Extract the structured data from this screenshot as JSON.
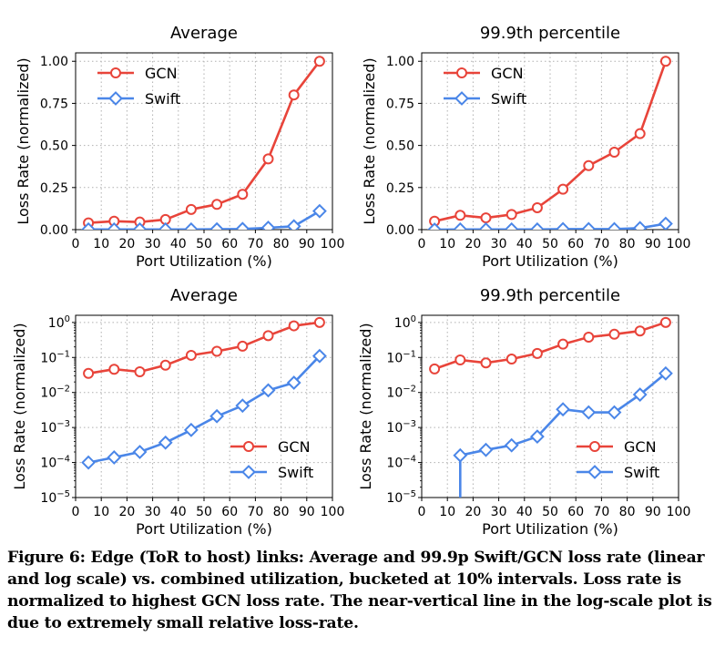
{
  "caption": {
    "label": "Figure 6:",
    "text": "Edge (ToR to host) links: Average and 99.9p Swift/GCN loss rate (linear and log scale) vs. combined utilization, bucketed at 10% intervals. Loss rate is normalized to highest GCN loss rate. The near-vertical line in the log-scale plot is due to extremely small relative loss-rate."
  },
  "colors": {
    "gcn": "#e8443a",
    "swift": "#4a86e8",
    "grid": "#b0b0b0"
  },
  "chart_data": [
    {
      "type": "line",
      "title": "Average",
      "xlabel": "Port Utilization (%)",
      "ylabel": "Loss Rate (normalized)",
      "yscale": "linear",
      "xlim": [
        0,
        100
      ],
      "ylim": [
        0,
        1.05
      ],
      "xticks": [
        0,
        10,
        20,
        30,
        40,
        50,
        60,
        70,
        80,
        90,
        100
      ],
      "yticks": [
        0,
        0.25,
        0.5,
        0.75,
        1.0
      ],
      "ytick_labels": [
        "0.00",
        "0.25",
        "0.50",
        "0.75",
        "1.00"
      ],
      "grid": true,
      "legend_position": "upper-left",
      "x": [
        5,
        15,
        25,
        35,
        45,
        55,
        65,
        75,
        85,
        95
      ],
      "series": [
        {
          "name": "GCN",
          "marker": "circle",
          "values": [
            0.04,
            0.05,
            0.045,
            0.06,
            0.12,
            0.15,
            0.21,
            0.42,
            0.8,
            1.0
          ]
        },
        {
          "name": "Swift",
          "marker": "diamond",
          "values": [
            0.001,
            0.001,
            0.001,
            0.001,
            0.001,
            0.002,
            0.004,
            0.011,
            0.02,
            0.11
          ]
        }
      ]
    },
    {
      "type": "line",
      "title": "99.9th percentile",
      "xlabel": "Port Utilization (%)",
      "ylabel": "Loss Rate (normalized)",
      "yscale": "linear",
      "xlim": [
        0,
        100
      ],
      "ylim": [
        0,
        1.05
      ],
      "xticks": [
        0,
        10,
        20,
        30,
        40,
        50,
        60,
        70,
        80,
        90,
        100
      ],
      "yticks": [
        0,
        0.25,
        0.5,
        0.75,
        1.0
      ],
      "ytick_labels": [
        "0.00",
        "0.25",
        "0.50",
        "0.75",
        "1.00"
      ],
      "grid": true,
      "legend_position": "upper-left",
      "x": [
        5,
        15,
        25,
        35,
        45,
        55,
        65,
        75,
        85,
        95
      ],
      "series": [
        {
          "name": "GCN",
          "marker": "circle",
          "values": [
            0.05,
            0.085,
            0.07,
            0.09,
            0.13,
            0.24,
            0.38,
            0.46,
            0.57,
            1.0
          ]
        },
        {
          "name": "Swift",
          "marker": "diamond",
          "values": [
            0.0001,
            0.001,
            0.001,
            0.001,
            0.001,
            0.003,
            0.003,
            0.003,
            0.009,
            0.035
          ]
        }
      ]
    },
    {
      "type": "line",
      "title": "Average",
      "xlabel": "Port Utilization (%)",
      "ylabel": "Loss Rate (normalized)",
      "yscale": "log",
      "xlim": [
        0,
        100
      ],
      "ylim": [
        1e-05,
        1.6
      ],
      "xticks": [
        0,
        10,
        20,
        30,
        40,
        50,
        60,
        70,
        80,
        90,
        100
      ],
      "yticks": [
        1e-05,
        0.0001,
        0.001,
        0.01,
        0.1,
        1
      ],
      "ytick_exponents": [
        "−5",
        "−4",
        "−3",
        "−2",
        "−1",
        "0"
      ],
      "grid": true,
      "legend_position": "lower-right",
      "x": [
        5,
        15,
        25,
        35,
        45,
        55,
        65,
        75,
        85,
        95
      ],
      "series": [
        {
          "name": "GCN",
          "marker": "circle",
          "values": [
            0.035,
            0.046,
            0.039,
            0.06,
            0.115,
            0.15,
            0.21,
            0.42,
            0.8,
            1.0
          ]
        },
        {
          "name": "Swift",
          "marker": "diamond",
          "values": [
            0.0001,
            0.00014,
            0.0002,
            0.00037,
            0.00085,
            0.0021,
            0.0042,
            0.0115,
            0.019,
            0.11
          ]
        }
      ]
    },
    {
      "type": "line",
      "title": "99.9th percentile",
      "xlabel": "Port Utilization (%)",
      "ylabel": "Loss Rate (normalized)",
      "yscale": "log",
      "xlim": [
        0,
        100
      ],
      "ylim": [
        1e-05,
        1.6
      ],
      "xticks": [
        0,
        10,
        20,
        30,
        40,
        50,
        60,
        70,
        80,
        90,
        100
      ],
      "yticks": [
        1e-05,
        0.0001,
        0.001,
        0.01,
        0.1,
        1
      ],
      "ytick_exponents": [
        "−5",
        "−4",
        "−3",
        "−2",
        "−1",
        "0"
      ],
      "grid": true,
      "legend_position": "lower-right",
      "x": [
        5,
        15,
        25,
        35,
        45,
        55,
        65,
        75,
        85,
        95
      ],
      "series": [
        {
          "name": "GCN",
          "marker": "circle",
          "values": [
            0.047,
            0.085,
            0.07,
            0.09,
            0.13,
            0.24,
            0.38,
            0.46,
            0.57,
            1.0
          ]
        },
        {
          "name": "Swift",
          "marker": "diamond",
          "values": [
            null,
            0.00016,
            0.00023,
            0.00031,
            0.00055,
            0.0033,
            0.0027,
            0.0027,
            0.0087,
            0.035
          ],
          "drop_to_axis_before_x": 15
        }
      ]
    }
  ]
}
